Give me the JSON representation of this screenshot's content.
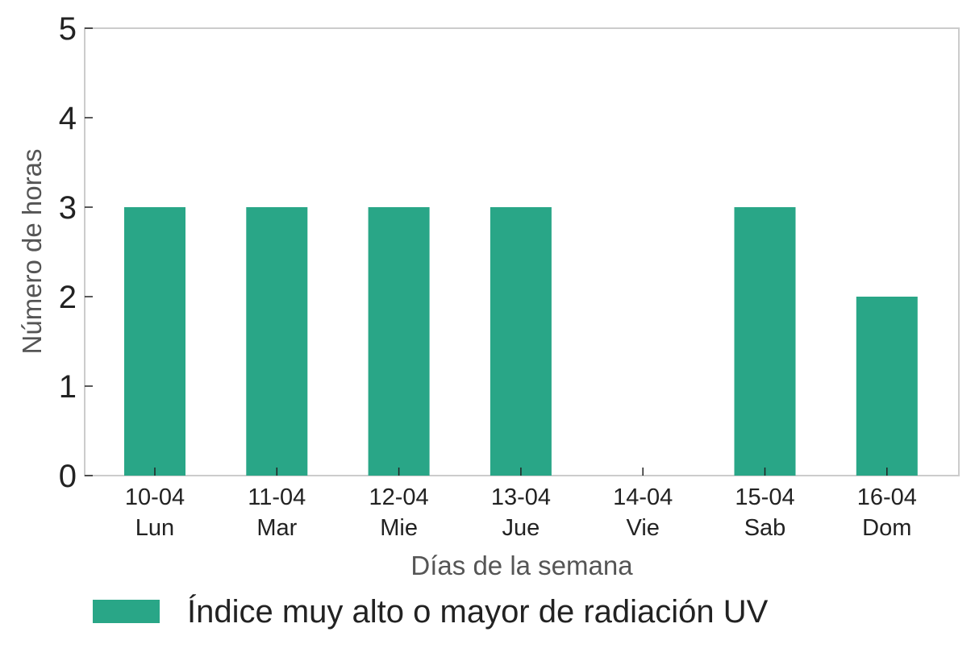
{
  "chart_data": {
    "type": "bar",
    "categories": [
      [
        "10-04",
        "Lun"
      ],
      [
        "11-04",
        "Mar"
      ],
      [
        "12-04",
        "Mie"
      ],
      [
        "13-04",
        "Jue"
      ],
      [
        "14-04",
        "Vie"
      ],
      [
        "15-04",
        "Sab"
      ],
      [
        "16-04",
        "Dom"
      ]
    ],
    "series": [
      {
        "name": "Índice muy alto o mayor de radiación UV",
        "values": [
          3,
          3,
          3,
          3,
          0,
          3,
          2
        ],
        "color": "#29a687"
      }
    ],
    "xlabel": "Días de la semana",
    "ylabel": "Número de horas",
    "ylim": [
      0,
      5
    ],
    "yticks": [
      0,
      1,
      2,
      3,
      4,
      5
    ],
    "grid": false,
    "legend_position": "bottom-left",
    "frame_color": "#cccccc"
  }
}
